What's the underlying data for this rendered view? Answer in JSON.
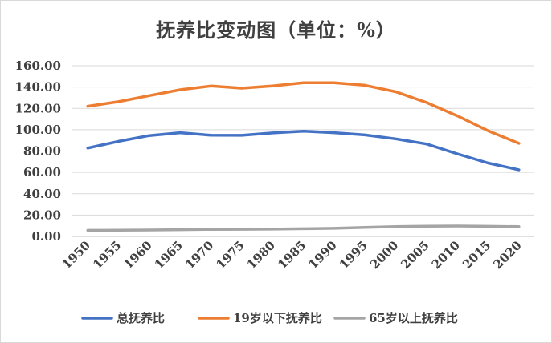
{
  "chart_data": {
    "type": "line",
    "title": "抚养比变动图（单位：%）",
    "categories": [
      "1950",
      "1955",
      "1960",
      "1965",
      "1970",
      "1975",
      "1980",
      "1985",
      "1990",
      "1995",
      "2000",
      "2005",
      "2010",
      "2015",
      "2020"
    ],
    "ylim": [
      0,
      160
    ],
    "yticks": [
      "0.00",
      "20.00",
      "40.00",
      "60.00",
      "80.00",
      "100.00",
      "120.00",
      "140.00",
      "160.00"
    ],
    "grid": true,
    "legend_position": "bottom",
    "series": [
      {
        "name": "总抚养比",
        "color": "#4472c4",
        "values": [
          82.8,
          89.1,
          94.5,
          97.2,
          94.8,
          94.7,
          97.0,
          98.6,
          97.2,
          95.1,
          91.4,
          86.6,
          77.4,
          68.7,
          62.4
        ]
      },
      {
        "name": "19岁以下抚养比",
        "color": "#ed7d31",
        "values": [
          122.0,
          126.3,
          132.0,
          137.5,
          141.0,
          139.0,
          141.0,
          144.0,
          144.0,
          141.7,
          135.6,
          125.5,
          113.0,
          99.0,
          87.2
        ]
      },
      {
        "name": "65岁以上抚养比",
        "color": "#a5a5a5",
        "values": [
          5.7,
          5.8,
          6.0,
          6.3,
          6.6,
          6.7,
          6.8,
          7.2,
          7.6,
          8.5,
          9.2,
          9.6,
          9.8,
          9.5,
          9.2
        ]
      }
    ]
  }
}
